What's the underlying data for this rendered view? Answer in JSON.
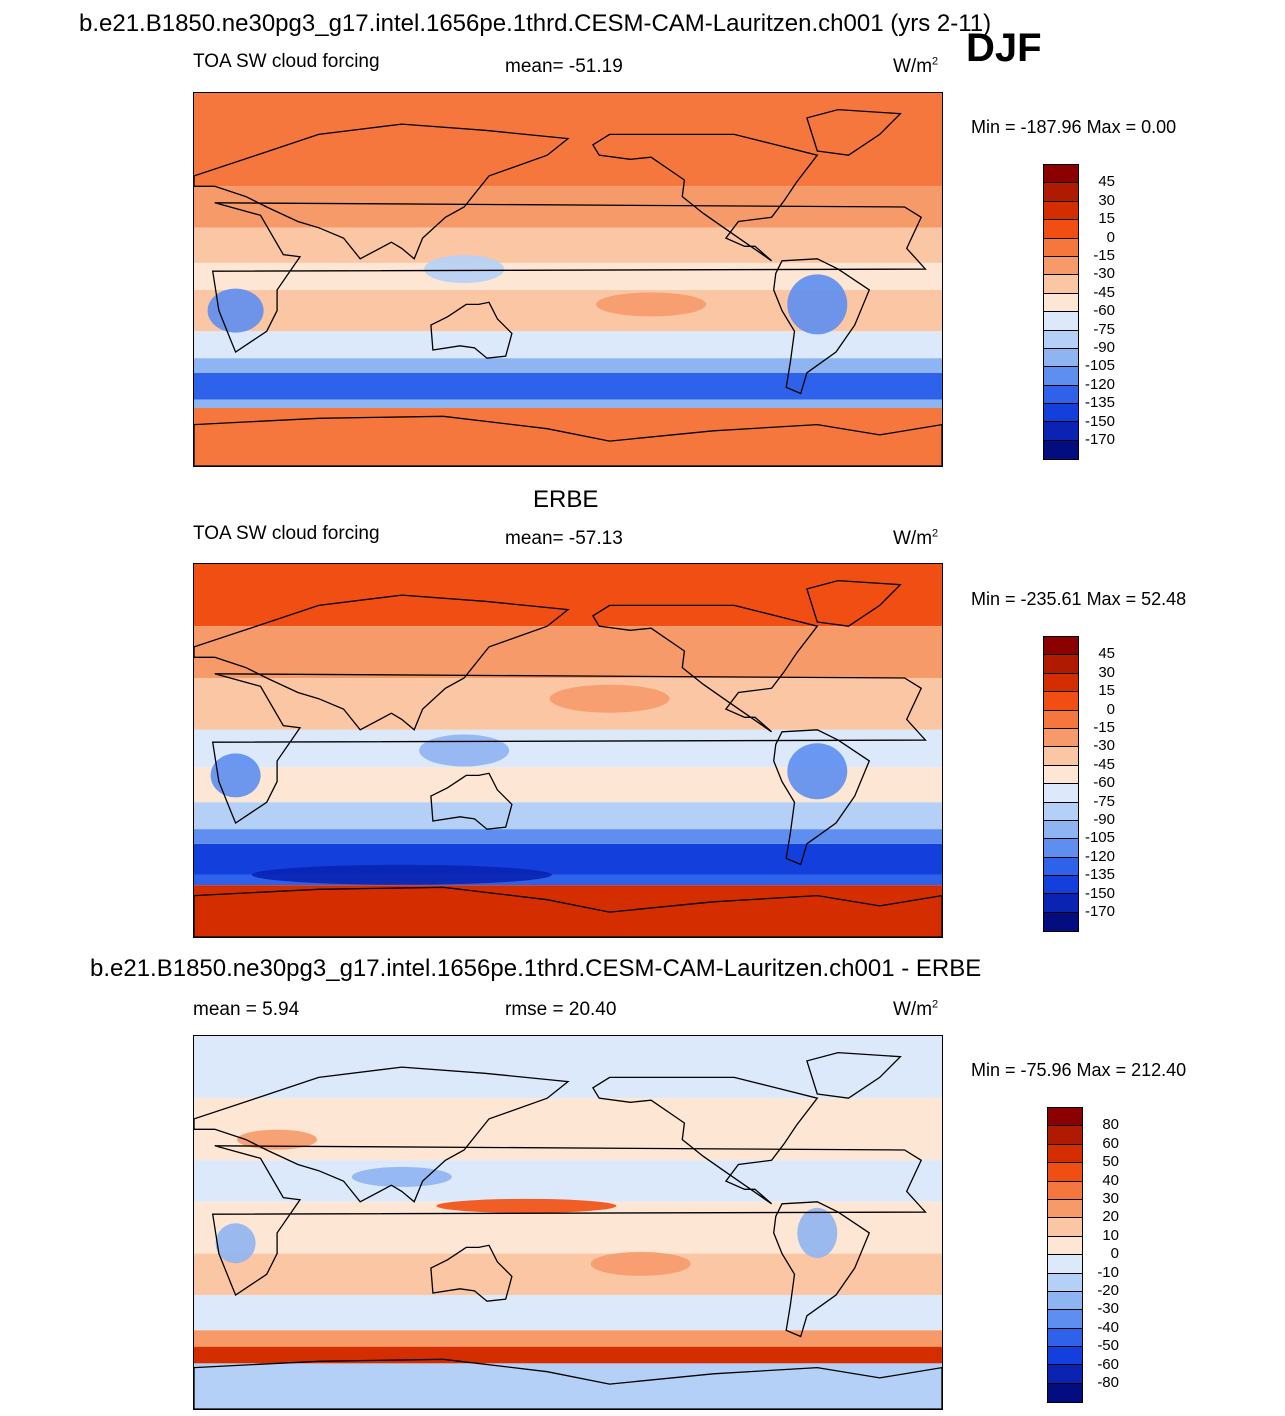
{
  "header": {
    "case_title": "b.e21.B1850.ne30pg3_g17.intel.1656pe.1thrd.CESM-CAM-Lauritzen.ch001 (yrs 2-11)",
    "season": "DJF"
  },
  "panels": [
    {
      "id": "model",
      "title": "",
      "left_label": "TOA SW cloud forcing",
      "center_label": "mean= -51.19",
      "units_base": "W/m",
      "units_exp": "2",
      "minmax": "Min = -187.96 Max =    0.00",
      "colorbar_labels": [
        "45",
        "30",
        "15",
        "0",
        "-15",
        "-30",
        "-45",
        "-60",
        "-75",
        "-90",
        "-105",
        "-120",
        "-135",
        "-150",
        "-170"
      ]
    },
    {
      "id": "obs",
      "title": "ERBE",
      "left_label": "TOA SW cloud forcing",
      "center_label": "mean= -57.13",
      "units_base": "W/m",
      "units_exp": "2",
      "minmax": "Min = -235.61 Max =  52.48",
      "colorbar_labels": [
        "45",
        "30",
        "15",
        "0",
        "-15",
        "-30",
        "-45",
        "-60",
        "-75",
        "-90",
        "-105",
        "-120",
        "-135",
        "-150",
        "-170"
      ]
    },
    {
      "id": "diff",
      "title": "b.e21.B1850.ne30pg3_g17.intel.1656pe.1thrd.CESM-CAM-Lauritzen.ch001 - ERBE",
      "left_label": "mean =   5.94",
      "center_label": "rmse =  20.40",
      "units_base": "W/m",
      "units_exp": "2",
      "minmax": "Min = -75.96 Max = 212.40",
      "colorbar_labels": [
        "80",
        "60",
        "50",
        "40",
        "30",
        "20",
        "10",
        "0",
        "-10",
        "-20",
        "-30",
        "-40",
        "-50",
        "-60",
        "-80"
      ]
    }
  ],
  "chart_data": [
    {
      "type": "heatmap",
      "title": "TOA SW cloud forcing (model)",
      "units": "W/m2",
      "mean": -51.19,
      "min": -187.96,
      "max": 0.0,
      "levels": [
        45,
        30,
        15,
        0,
        -15,
        -30,
        -45,
        -60,
        -75,
        -90,
        -105,
        -120,
        -135,
        -150,
        -170
      ],
      "colors": [
        "#8b0000",
        "#b01a00",
        "#d42d00",
        "#f04e12",
        "#f6773d",
        "#f69a6a",
        "#fbc6a3",
        "#fde6d4",
        "#dbe9fb",
        "#b5d0f7",
        "#8fb4f2",
        "#5d8ef0",
        "#2f62eb",
        "#1340dc",
        "#0a23b3",
        "#030d80"
      ],
      "xlim": [
        0,
        360
      ],
      "ylim": [
        -90,
        90
      ]
    },
    {
      "type": "heatmap",
      "title": "ERBE TOA SW cloud forcing",
      "units": "W/m2",
      "mean": -57.13,
      "min": -235.61,
      "max": 52.48,
      "levels": [
        45,
        30,
        15,
        0,
        -15,
        -30,
        -45,
        -60,
        -75,
        -90,
        -105,
        -120,
        -135,
        -150,
        -170
      ],
      "colors": [
        "#8b0000",
        "#b01a00",
        "#d42d00",
        "#f04e12",
        "#f6773d",
        "#f69a6a",
        "#fbc6a3",
        "#fde6d4",
        "#dbe9fb",
        "#b5d0f7",
        "#8fb4f2",
        "#5d8ef0",
        "#2f62eb",
        "#1340dc",
        "#0a23b3",
        "#030d80"
      ],
      "xlim": [
        0,
        360
      ],
      "ylim": [
        -90,
        90
      ]
    },
    {
      "type": "heatmap",
      "title": "model - ERBE",
      "units": "W/m2",
      "mean": 5.94,
      "rmse": 20.4,
      "min": -75.96,
      "max": 212.4,
      "levels": [
        80,
        60,
        50,
        40,
        30,
        20,
        10,
        0,
        -10,
        -20,
        -30,
        -40,
        -50,
        -60,
        -80
      ],
      "colors": [
        "#8b0000",
        "#b01a00",
        "#d42d00",
        "#f04e12",
        "#f6773d",
        "#f69a6a",
        "#fbc6a3",
        "#fde6d4",
        "#dbe9fb",
        "#b5d0f7",
        "#8fb4f2",
        "#5d8ef0",
        "#2f62eb",
        "#1340dc",
        "#0a23b3",
        "#030d80"
      ],
      "xlim": [
        0,
        360
      ],
      "ylim": [
        -90,
        90
      ]
    }
  ]
}
